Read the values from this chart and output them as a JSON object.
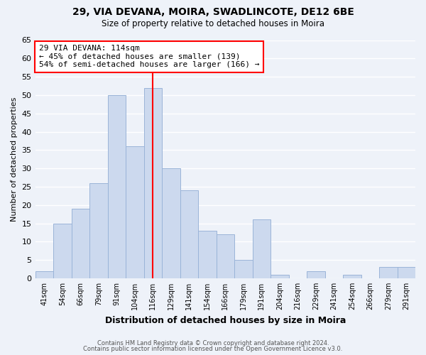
{
  "title1": "29, VIA DEVANA, MOIRA, SWADLINCOTE, DE12 6BE",
  "title2": "Size of property relative to detached houses in Moira",
  "xlabel": "Distribution of detached houses by size in Moira",
  "ylabel": "Number of detached properties",
  "categories": [
    "41sqm",
    "54sqm",
    "66sqm",
    "79sqm",
    "91sqm",
    "104sqm",
    "116sqm",
    "129sqm",
    "141sqm",
    "154sqm",
    "166sqm",
    "179sqm",
    "191sqm",
    "204sqm",
    "216sqm",
    "229sqm",
    "241sqm",
    "254sqm",
    "266sqm",
    "279sqm",
    "291sqm"
  ],
  "values": [
    2,
    15,
    19,
    26,
    50,
    36,
    52,
    30,
    24,
    13,
    12,
    5,
    16,
    1,
    0,
    2,
    0,
    1,
    0,
    3,
    3
  ],
  "bar_color": "#ccd9ee",
  "bar_edge_color": "#9ab4d8",
  "vline_x_index": 6,
  "vline_color": "red",
  "annotation_text": "29 VIA DEVANA: 114sqm\n← 45% of detached houses are smaller (139)\n54% of semi-detached houses are larger (166) →",
  "annotation_box_color": "white",
  "annotation_box_edge_color": "red",
  "ylim": [
    0,
    65
  ],
  "yticks": [
    0,
    5,
    10,
    15,
    20,
    25,
    30,
    35,
    40,
    45,
    50,
    55,
    60,
    65
  ],
  "footer1": "Contains HM Land Registry data © Crown copyright and database right 2024.",
  "footer2": "Contains public sector information licensed under the Open Government Licence v3.0.",
  "background_color": "#eef2f9",
  "grid_color": "#ffffff"
}
